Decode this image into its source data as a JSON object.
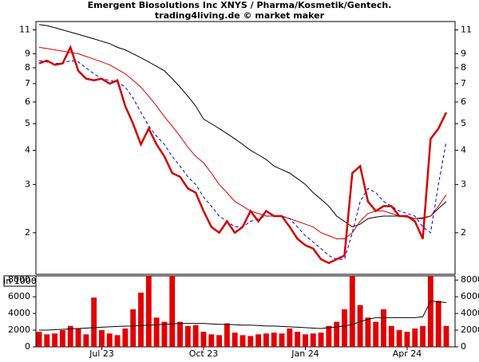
{
  "chart_data": {
    "type": "stock",
    "title": "Emergent Biosolutions Inc XNYS / Pharma/Kosmetik/Gentech.",
    "subtitle": "trading4living.de © market maker",
    "volume_unit_label": "in 1000",
    "log_scale": true,
    "categories": [
      null,
      null,
      null,
      null,
      null,
      null,
      null,
      null,
      "Jul 23",
      null,
      null,
      null,
      null,
      null,
      null,
      null,
      null,
      null,
      null,
      null,
      null,
      "Oct 23",
      null,
      null,
      null,
      null,
      null,
      null,
      null,
      null,
      null,
      null,
      null,
      null,
      "Jan 24",
      null,
      null,
      null,
      null,
      null,
      null,
      null,
      null,
      null,
      null,
      null,
      null,
      "Apr 24",
      null,
      null,
      null,
      null,
      null
    ],
    "ylim": [
      1.41,
      11.8
    ],
    "yticks": [
      2,
      3,
      4,
      5,
      6,
      7,
      8,
      9,
      11
    ],
    "series": [
      {
        "name": "Price",
        "color": "#d40000",
        "values": [
          8.3,
          8.5,
          8.2,
          8.3,
          9.5,
          7.8,
          7.3,
          7.2,
          7.3,
          7.0,
          7.2,
          5.8,
          5.0,
          4.2,
          4.8,
          4.2,
          3.8,
          3.3,
          3.2,
          2.9,
          2.8,
          2.4,
          2.1,
          2.0,
          2.2,
          2.0,
          2.1,
          2.4,
          2.2,
          2.4,
          2.3,
          2.3,
          2.1,
          1.9,
          1.8,
          1.75,
          1.6,
          1.55,
          1.6,
          1.65,
          3.3,
          3.5,
          2.6,
          2.4,
          2.5,
          2.5,
          2.3,
          2.3,
          2.2,
          1.9,
          4.4,
          4.8,
          5.5
        ]
      },
      {
        "name": "MA200",
        "color": "#000000",
        "values": [
          11.5,
          11.4,
          11.2,
          11.0,
          10.8,
          10.6,
          10.4,
          10.2,
          10.0,
          9.8,
          9.5,
          9.3,
          9.0,
          8.7,
          8.4,
          8.1,
          7.8,
          7.3,
          6.8,
          6.3,
          5.8,
          5.2,
          5.0,
          4.8,
          4.6,
          4.4,
          4.2,
          4.0,
          3.85,
          3.7,
          3.5,
          3.4,
          3.3,
          3.15,
          3.0,
          2.8,
          2.65,
          2.5,
          2.3,
          2.2,
          2.1,
          2.15,
          2.25,
          2.28,
          2.3,
          2.3,
          2.3,
          2.28,
          2.25,
          2.27,
          2.3,
          2.45,
          2.6
        ]
      },
      {
        "name": "MA50",
        "color": "#e00000",
        "values": [
          9.5,
          9.4,
          9.3,
          9.2,
          9.1,
          9.0,
          8.8,
          8.6,
          8.4,
          8.2,
          7.9,
          7.6,
          7.2,
          6.8,
          6.3,
          5.8,
          5.3,
          4.9,
          4.5,
          4.1,
          3.8,
          3.6,
          3.3,
          3.0,
          2.8,
          2.6,
          2.5,
          2.4,
          2.35,
          2.3,
          2.3,
          2.3,
          2.25,
          2.2,
          2.15,
          2.1,
          2.0,
          1.95,
          1.9,
          1.9,
          2.0,
          2.2,
          2.35,
          2.4,
          2.4,
          2.35,
          2.3,
          2.3,
          2.25,
          2.25,
          2.3,
          2.5,
          2.75
        ]
      },
      {
        "name": "MA20",
        "color": "#0000dd",
        "dashed": true,
        "values": [
          8.5,
          8.4,
          8.3,
          8.3,
          8.5,
          8.4,
          8.0,
          7.6,
          7.3,
          7.2,
          7.1,
          6.8,
          6.2,
          5.5,
          4.9,
          4.5,
          4.2,
          3.8,
          3.5,
          3.2,
          3.0,
          2.7,
          2.5,
          2.3,
          2.2,
          2.1,
          2.1,
          2.2,
          2.25,
          2.3,
          2.3,
          2.3,
          2.25,
          2.1,
          1.95,
          1.85,
          1.75,
          1.65,
          1.6,
          1.6,
          2.0,
          2.6,
          2.9,
          2.8,
          2.6,
          2.5,
          2.4,
          2.35,
          2.3,
          2.1,
          2.0,
          3.0,
          4.3
        ]
      }
    ],
    "volume": {
      "color": "#e00000",
      "values": [
        1800,
        1500,
        1600,
        2000,
        2500,
        2200,
        1500,
        5900,
        2000,
        1600,
        1400,
        2200,
        4500,
        6500,
        8500,
        3500,
        3000,
        8500,
        3000,
        2500,
        2600,
        1800,
        1500,
        1400,
        2800,
        1700,
        1400,
        1300,
        1500,
        1600,
        1700,
        1600,
        2200,
        1800,
        1500,
        1600,
        1700,
        2500,
        3000,
        4500,
        8500,
        5000,
        3500,
        3000,
        4500,
        2500,
        2000,
        1800,
        2200,
        2500,
        8500,
        5500,
        2500
      ]
    },
    "volume_avg": {
      "color": "#000000",
      "values": [
        2000,
        2000,
        2050,
        2100,
        2150,
        2200,
        2250,
        2300,
        2350,
        2400,
        2450,
        2480,
        2500,
        2550,
        2600,
        2650,
        2700,
        2750,
        2800,
        2800,
        2800,
        2800,
        2750,
        2700,
        2700,
        2650,
        2600,
        2600,
        2550,
        2500,
        2500,
        2450,
        2400,
        2350,
        2300,
        2250,
        2200,
        2300,
        2400,
        2500,
        2700,
        3000,
        3300,
        3500,
        3500,
        3500,
        3500,
        3500,
        3500,
        3600,
        5500,
        5400,
        5300
      ]
    },
    "vlim": [
      0,
      8500
    ],
    "vticks": [
      0,
      2000,
      4000,
      6000,
      8000
    ]
  }
}
